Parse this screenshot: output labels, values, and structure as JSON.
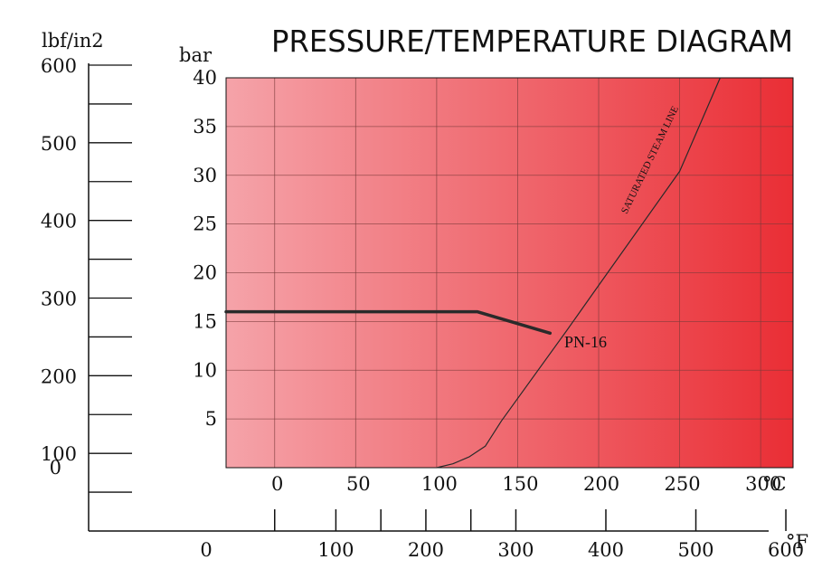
{
  "chart_data": {
    "type": "line",
    "title": "PRESSURE/TEMPERATURE DIAGRAM",
    "ylabel_bar": "bar",
    "ylabel_psi": "lbf/in2",
    "xunit_c": "°C",
    "xunit_f": "°F",
    "x_range_c": [
      -30,
      320
    ],
    "y_range_bar": [
      0,
      40
    ],
    "grid": true,
    "bar_ticks": [
      {
        "value": 5,
        "label": "5"
      },
      {
        "value": 10,
        "label": "10"
      },
      {
        "value": 15,
        "label": "15"
      },
      {
        "value": 20,
        "label": "20"
      },
      {
        "value": 25,
        "label": "25"
      },
      {
        "value": 30,
        "label": "30"
      },
      {
        "value": 35,
        "label": "35"
      },
      {
        "value": 40,
        "label": "40"
      }
    ],
    "c_ticks": [
      {
        "value": 0,
        "label": "0"
      },
      {
        "value": 50,
        "label": "50"
      },
      {
        "value": 100,
        "label": "100"
      },
      {
        "value": 150,
        "label": "150"
      },
      {
        "value": 200,
        "label": "200"
      },
      {
        "value": 250,
        "label": "250"
      },
      {
        "value": 300,
        "label": "300"
      }
    ],
    "c_gridlines": [
      0,
      50,
      100,
      150,
      200,
      250,
      300
    ],
    "psi_labels": [
      {
        "value": 0,
        "label": "0"
      },
      {
        "value": 100,
        "label": "100"
      },
      {
        "value": 200,
        "label": "200"
      },
      {
        "value": 300,
        "label": "300"
      },
      {
        "value": 400,
        "label": "400"
      },
      {
        "value": 500,
        "label": "500"
      },
      {
        "value": 600,
        "label": "600"
      }
    ],
    "psi_minor_ticks": [
      50,
      150,
      250,
      350,
      450,
      550
    ],
    "f_labels": [
      {
        "value": 0,
        "label": "0"
      },
      {
        "value": 100,
        "label": "100"
      },
      {
        "value": 200,
        "label": "200"
      },
      {
        "value": 300,
        "label": "300"
      },
      {
        "value": 400,
        "label": "400"
      },
      {
        "value": 500,
        "label": "500"
      },
      {
        "value": 600,
        "label": "600"
      }
    ],
    "f_ticks": [
      32,
      100,
      150,
      200,
      250,
      300,
      400,
      500,
      600
    ],
    "series": [
      {
        "name": "PN-16",
        "color": "#2a2a2a",
        "points": [
          [
            -30,
            16
          ],
          [
            125,
            16
          ],
          [
            170,
            13.8
          ]
        ]
      },
      {
        "name": "SATURATED STEAM LINE",
        "color": "#2a2a2a",
        "points": [
          [
            100,
            0
          ],
          [
            110,
            0.4
          ],
          [
            120,
            1.1
          ],
          [
            130,
            2.2
          ],
          [
            140,
            4.8
          ],
          [
            180,
            14.0
          ],
          [
            200,
            18.7
          ],
          [
            250,
            30.4
          ],
          [
            275,
            40
          ]
        ]
      }
    ],
    "colors": {
      "plot_start": "#f5a3a9",
      "plot_end": "#ea2e35",
      "grid": "#7a3a3a",
      "axis": "#111111"
    }
  }
}
